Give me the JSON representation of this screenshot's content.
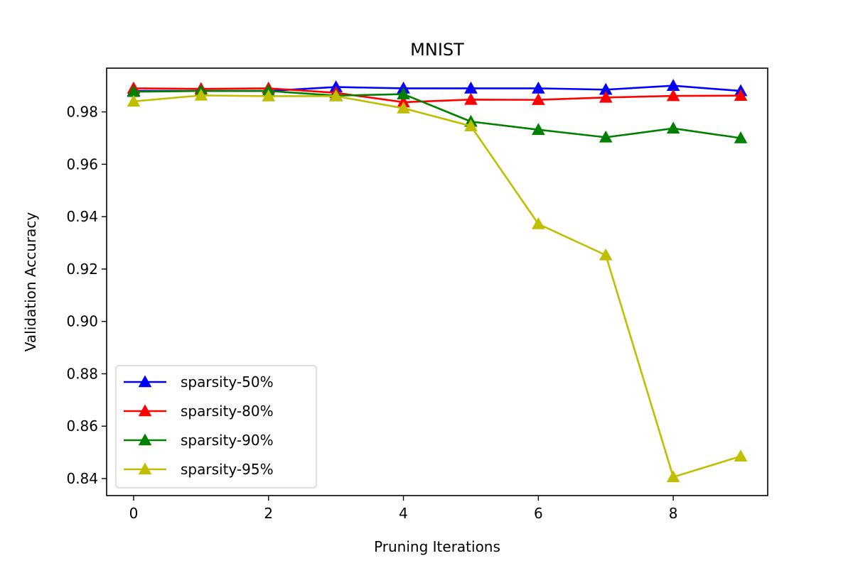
{
  "chart_data": {
    "type": "line",
    "title": "MNIST",
    "xlabel": "Pruning Iterations",
    "ylabel": "Validation Accuracy",
    "xlim": [
      -0.4,
      9.4
    ],
    "ylim": [
      0.8335,
      0.9967
    ],
    "xticks": [
      0,
      2,
      4,
      6,
      8
    ],
    "xtick_labels": [
      "0",
      "2",
      "4",
      "6",
      "8"
    ],
    "yticks": [
      0.84,
      0.86,
      0.88,
      0.9,
      0.92,
      0.94,
      0.96,
      0.98
    ],
    "ytick_labels": [
      "0.84",
      "0.86",
      "0.88",
      "0.90",
      "0.92",
      "0.94",
      "0.96",
      "0.98"
    ],
    "grid": false,
    "legend_position": "lower-left",
    "marker": "triangle-up",
    "x": [
      0,
      1,
      2,
      3,
      4,
      5,
      6,
      7,
      8,
      9
    ],
    "series": [
      {
        "name": "sparsity-50%",
        "color": "#0000ff",
        "values": [
          0.988,
          0.988,
          0.988,
          0.9895,
          0.989,
          0.989,
          0.989,
          0.9885,
          0.99,
          0.988
        ]
      },
      {
        "name": "sparsity-80%",
        "color": "#ff0000",
        "values": [
          0.989,
          0.9888,
          0.989,
          0.9873,
          0.9837,
          0.9847,
          0.9846,
          0.9855,
          0.9861,
          0.9862
        ]
      },
      {
        "name": "sparsity-90%",
        "color": "#008000",
        "values": [
          0.9877,
          0.988,
          0.988,
          0.9862,
          0.9868,
          0.9763,
          0.9732,
          0.9703,
          0.9737,
          0.97
        ]
      },
      {
        "name": "sparsity-95%",
        "color": "#bfbf00",
        "values": [
          0.984,
          0.9863,
          0.986,
          0.986,
          0.9814,
          0.9746,
          0.9372,
          0.9253,
          0.8406,
          0.8485
        ]
      }
    ]
  }
}
